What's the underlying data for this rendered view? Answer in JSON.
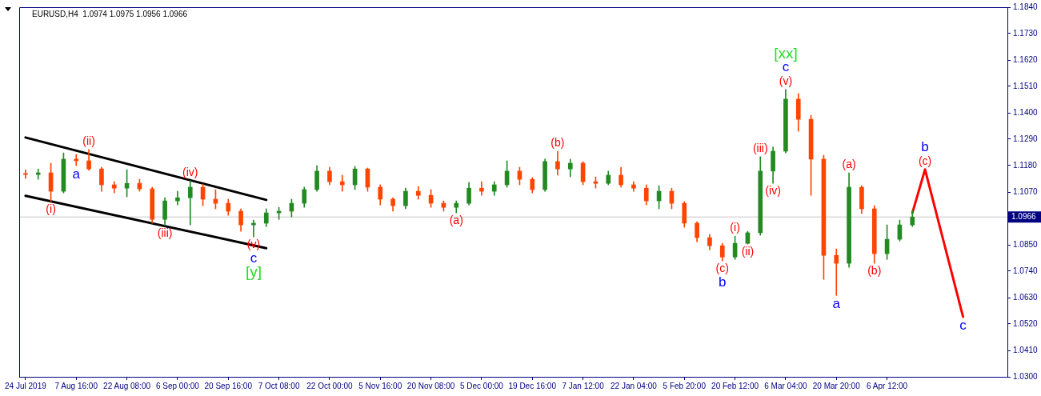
{
  "chart_data": {
    "type": "candlestick",
    "title": "EURUSD,H4  1.0974 1.0975 1.0956 1.0966",
    "categories": [
      "24 Jul 2019",
      null,
      null,
      null,
      "7 Aug 16:00",
      null,
      null,
      null,
      "22 Aug 08:00",
      null,
      null,
      null,
      "6 Sep 00:00",
      null,
      null,
      null,
      "20 Sep 16:00",
      null,
      null,
      null,
      "7 Oct 08:00",
      null,
      null,
      null,
      "22 Oct 00:00",
      null,
      null,
      null,
      "5 Nov 16:00",
      null,
      null,
      null,
      "20 Nov 08:00",
      null,
      null,
      null,
      "5 Dec 00:00",
      null,
      null,
      null,
      "19 Dec 16:00",
      null,
      null,
      null,
      "7 Jan 12:00",
      null,
      null,
      null,
      "22 Jan 04:00",
      null,
      null,
      null,
      "5 Feb 20:00",
      null,
      null,
      null,
      "20 Feb 12:00",
      null,
      null,
      null,
      "6 Mar 04:00",
      null,
      null,
      null,
      "20 Mar 20:00",
      null,
      null,
      null,
      "6 Apr 12:00",
      null,
      null,
      null,
      null,
      null,
      null,
      null,
      null,
      null
    ],
    "ohlc": [
      [
        1.1147,
        1.1163,
        1.1126,
        1.1143
      ],
      [
        1.1143,
        1.1166,
        1.1123,
        1.115
      ],
      [
        1.115,
        1.119,
        1.103,
        1.1073
      ],
      [
        1.1073,
        1.1233,
        1.1066,
        1.1207
      ],
      [
        1.1207,
        1.1226,
        1.118,
        1.12
      ],
      [
        1.12,
        1.1247,
        1.116,
        1.1166
      ],
      [
        1.1166,
        1.1173,
        1.1073,
        1.11
      ],
      [
        1.11,
        1.1113,
        1.1066,
        1.1086
      ],
      [
        1.1086,
        1.1163,
        1.105,
        1.1106
      ],
      [
        1.1106,
        1.1123,
        1.1073,
        1.1083
      ],
      [
        1.1083,
        1.109,
        1.094,
        1.0956
      ],
      [
        1.0956,
        1.1046,
        1.093,
        1.1033
      ],
      [
        1.1033,
        1.1073,
        1.1016,
        1.1046
      ],
      [
        1.1046,
        1.1117,
        1.0933,
        1.109
      ],
      [
        1.109,
        1.1103,
        1.1013,
        1.104
      ],
      [
        1.104,
        1.108,
        1.1,
        1.1023
      ],
      [
        1.1023,
        1.104,
        1.0973,
        1.099
      ],
      [
        1.099,
        1.1,
        1.0906,
        1.0933
      ],
      [
        1.0933,
        1.0953,
        1.0883,
        1.094
      ],
      [
        1.094,
        1.1,
        1.0926,
        1.0983
      ],
      [
        1.0983,
        1.1006,
        1.0956,
        1.099
      ],
      [
        1.099,
        1.104,
        1.0966,
        1.1023
      ],
      [
        1.1023,
        1.109,
        1.1006,
        1.108
      ],
      [
        1.108,
        1.118,
        1.1073,
        1.1157
      ],
      [
        1.1157,
        1.1173,
        1.11,
        1.1113
      ],
      [
        1.1113,
        1.114,
        1.1073,
        1.11
      ],
      [
        1.11,
        1.1177,
        1.108,
        1.1166
      ],
      [
        1.1166,
        1.117,
        1.1073,
        1.109
      ],
      [
        1.109,
        1.11,
        1.1016,
        1.104
      ],
      [
        1.104,
        1.1046,
        1.099,
        1.1013
      ],
      [
        1.1013,
        1.1086,
        1.1,
        1.1073
      ],
      [
        1.1073,
        1.1093,
        1.104,
        1.1056
      ],
      [
        1.1056,
        1.108,
        1.1006,
        1.1023
      ],
      [
        1.1023,
        1.1033,
        1.099,
        1.1006
      ],
      [
        1.1006,
        1.1033,
        1.0983,
        1.1023
      ],
      [
        1.1023,
        1.111,
        1.1016,
        1.1086
      ],
      [
        1.1086,
        1.1113,
        1.1056,
        1.1073
      ],
      [
        1.1073,
        1.1113,
        1.1056,
        1.11
      ],
      [
        1.11,
        1.12,
        1.109,
        1.1157
      ],
      [
        1.1157,
        1.1173,
        1.11,
        1.1123
      ],
      [
        1.1123,
        1.113,
        1.1066,
        1.108
      ],
      [
        1.108,
        1.1207,
        1.1073,
        1.1197
      ],
      [
        1.1197,
        1.124,
        1.114,
        1.1166
      ],
      [
        1.1166,
        1.1207,
        1.1133,
        1.119
      ],
      [
        1.119,
        1.1197,
        1.11,
        1.1113
      ],
      [
        1.1113,
        1.1133,
        1.1086,
        1.1106
      ],
      [
        1.1106,
        1.1157,
        1.11,
        1.114
      ],
      [
        1.114,
        1.1173,
        1.109,
        1.11
      ],
      [
        1.11,
        1.1113,
        1.1073,
        1.1086
      ],
      [
        1.1086,
        1.11,
        1.1016,
        1.1033
      ],
      [
        1.1033,
        1.1096,
        1.1,
        1.1073
      ],
      [
        1.1073,
        1.1086,
        1.1,
        1.1023
      ],
      [
        1.1023,
        1.103,
        1.0923,
        1.094
      ],
      [
        1.094,
        1.0946,
        1.0863,
        1.088
      ],
      [
        1.088,
        1.0893,
        1.0829,
        1.0846
      ],
      [
        1.0846,
        1.0856,
        1.0783,
        1.0799
      ],
      [
        1.0799,
        1.0886,
        1.0789,
        1.0856
      ],
      [
        1.0856,
        1.0906,
        1.0853,
        1.09
      ],
      [
        1.09,
        1.1217,
        1.089,
        1.1157
      ],
      [
        1.1157,
        1.1257,
        1.1106,
        1.124
      ],
      [
        1.124,
        1.1497,
        1.1233,
        1.1457
      ],
      [
        1.1457,
        1.148,
        1.1323,
        1.1373
      ],
      [
        1.1373,
        1.139,
        1.1056,
        1.1207
      ],
      [
        1.1207,
        1.1223,
        1.0706,
        1.0806
      ],
      [
        1.0806,
        1.0833,
        1.0639,
        1.0773
      ],
      [
        1.0773,
        1.115,
        1.0756,
        1.109
      ],
      [
        1.109,
        1.1096,
        1.098,
        1.1
      ],
      [
        1.1,
        1.1013,
        1.0773,
        1.0813
      ],
      [
        1.0813,
        1.0933,
        1.0789,
        1.0873
      ],
      [
        1.0873,
        1.0953,
        1.0866,
        1.0933
      ],
      [
        1.0933,
        1.0993,
        1.0926,
        1.0966
      ],
      null,
      null,
      null,
      null,
      null,
      null,
      null
    ],
    "colors": [
      "#ff4500",
      "#228b22",
      "#ff4500",
      "#228b22",
      "#ff4500",
      "#ff4500",
      "#ff4500",
      "#ff4500",
      "#228b22",
      "#ff4500",
      "#ff4500",
      "#228b22",
      "#228b22",
      "#228b22",
      "#ff4500",
      "#ff4500",
      "#ff4500",
      "#ff4500",
      "#228b22",
      "#228b22",
      "#228b22",
      "#228b22",
      "#228b22",
      "#228b22",
      "#ff4500",
      "#ff4500",
      "#228b22",
      "#ff4500",
      "#ff4500",
      "#ff4500",
      "#228b22",
      "#ff4500",
      "#ff4500",
      "#ff4500",
      "#228b22",
      "#228b22",
      "#ff4500",
      "#228b22",
      "#228b22",
      "#ff4500",
      "#ff4500",
      "#228b22",
      "#ff4500",
      "#228b22",
      "#ff4500",
      "#ff4500",
      "#228b22",
      "#ff4500",
      "#ff4500",
      "#ff4500",
      "#228b22",
      "#ff4500",
      "#ff4500",
      "#ff4500",
      "#ff4500",
      "#ff4500",
      "#228b22",
      "#228b22",
      "#228b22",
      "#228b22",
      "#228b22",
      "#ff4500",
      "#ff4500",
      "#ff4500",
      "#ff4500",
      "#228b22",
      "#ff4500",
      "#ff4500",
      "#228b22",
      "#228b22",
      "#228b22",
      null,
      null,
      null,
      null,
      null,
      null,
      null
    ],
    "series": [
      {
        "type": "line",
        "color": "#000000",
        "values": [
          1.1297,
          null,
          null,
          null,
          null,
          null,
          null,
          null,
          null,
          null,
          null,
          null,
          null,
          null,
          null,
          null,
          null,
          null,
          null,
          1.1037,
          null,
          null,
          null,
          null,
          null,
          null,
          null,
          null,
          null,
          null,
          null,
          null,
          null,
          null,
          null,
          null,
          null,
          null,
          null,
          null,
          null,
          null,
          null,
          null,
          null,
          null,
          null,
          null,
          null,
          null,
          null,
          null,
          null,
          null,
          null,
          null,
          null,
          null,
          null,
          null,
          null,
          null,
          null,
          null,
          null,
          null,
          null,
          null,
          null,
          null,
          null,
          null,
          null,
          null,
          null,
          null,
          null,
          null
        ]
      },
      {
        "type": "line",
        "color": "#000000",
        "values": [
          1.1054,
          null,
          null,
          null,
          null,
          null,
          null,
          null,
          null,
          null,
          null,
          null,
          null,
          null,
          null,
          null,
          null,
          null,
          null,
          1.0836,
          null,
          null,
          null,
          null,
          null,
          null,
          null,
          null,
          null,
          null,
          null,
          null,
          null,
          null,
          null,
          null,
          null,
          null,
          null,
          null,
          null,
          null,
          null,
          null,
          null,
          null,
          null,
          null,
          null,
          null,
          null,
          null,
          null,
          null,
          null,
          null,
          null,
          null,
          null,
          null,
          null,
          null,
          null,
          null,
          null,
          null,
          null,
          null,
          null,
          null,
          null,
          null,
          null,
          null,
          null,
          null,
          null,
          null
        ]
      },
      {
        "type": "line",
        "color": "#ff0000",
        "values": [
          null,
          null,
          null,
          null,
          null,
          null,
          null,
          null,
          null,
          null,
          null,
          null,
          null,
          null,
          null,
          null,
          null,
          null,
          null,
          null,
          null,
          null,
          null,
          null,
          null,
          null,
          null,
          null,
          null,
          null,
          null,
          null,
          null,
          null,
          null,
          null,
          null,
          null,
          null,
          null,
          null,
          null,
          null,
          null,
          null,
          null,
          null,
          null,
          null,
          null,
          null,
          null,
          null,
          null,
          null,
          null,
          null,
          null,
          null,
          null,
          null,
          null,
          null,
          null,
          null,
          null,
          null,
          null,
          null,
          null,
          1.0983,
          1.1164,
          null,
          null,
          1.055,
          null,
          null,
          null
        ]
      }
    ],
    "ylim": [
      1.03,
      1.184
    ],
    "yticks": [
      {
        "value": 1.03,
        "label": "1.0300"
      },
      {
        "value": 1.041,
        "label": "1.0410"
      },
      {
        "value": 1.052,
        "label": "1.0520"
      },
      {
        "value": 1.063,
        "label": "1.0630"
      },
      {
        "value": 1.074,
        "label": "1.0740"
      },
      {
        "value": 1.085,
        "label": "1.0850"
      },
      {
        "value": 1.107,
        "label": "1.1070"
      },
      {
        "value": 1.118,
        "label": "1.1180"
      },
      {
        "value": 1.129,
        "label": "1.1290"
      },
      {
        "value": 1.14,
        "label": "1.1400"
      },
      {
        "value": 1.151,
        "label": "1.1510"
      },
      {
        "value": 1.162,
        "label": "1.1620"
      },
      {
        "value": 1.173,
        "label": "1.1730"
      },
      {
        "value": 1.184,
        "label": "1.1840"
      }
    ],
    "ref_lines": [
      {
        "axis": "y",
        "value": 1.0966,
        "label": "1.0966",
        "color": "#c8c8c8"
      }
    ],
    "annotations": [
      {
        "text": "(i)",
        "y": 1.103
      },
      {
        "text": "(ii)",
        "y": 1.1247
      },
      {
        "text": "(iii)",
        "y": 1.093
      },
      {
        "text": "(iv)",
        "y": 1.1117
      },
      {
        "text": "(v)",
        "y": 1.0883
      },
      {
        "text": "c",
        "y": 1.0883
      },
      {
        "text": "[y]",
        "y": 1.0883
      },
      {
        "text": "a",
        "y": 1.118
      },
      {
        "text": "(a)",
        "y": 1.0983
      },
      {
        "text": "(b)",
        "y": 1.124
      },
      {
        "text": "(c)",
        "y": 1.0783
      },
      {
        "text": "b",
        "y": 1.0783
      },
      {
        "text": "(i)",
        "y": 1.0886
      },
      {
        "text": "(ii)",
        "y": 1.0853
      },
      {
        "text": "(iii)",
        "y": 1.1217
      },
      {
        "text": "(iv)",
        "y": 1.1106
      },
      {
        "text": "(v)",
        "y": 1.1497
      },
      {
        "text": "c",
        "y": 1.1497
      },
      {
        "text": "[xx]",
        "y": 1.1497
      },
      {
        "text": "a",
        "y": 1.0639
      },
      {
        "text": "(a)",
        "y": 1.115
      },
      {
        "text": "(b)",
        "y": 1.0773
      },
      {
        "text": "(c)",
        "y": 1.1164
      },
      {
        "text": "b",
        "y": 1.1164
      },
      {
        "text": "c",
        "y": 1.055
      }
    ]
  }
}
